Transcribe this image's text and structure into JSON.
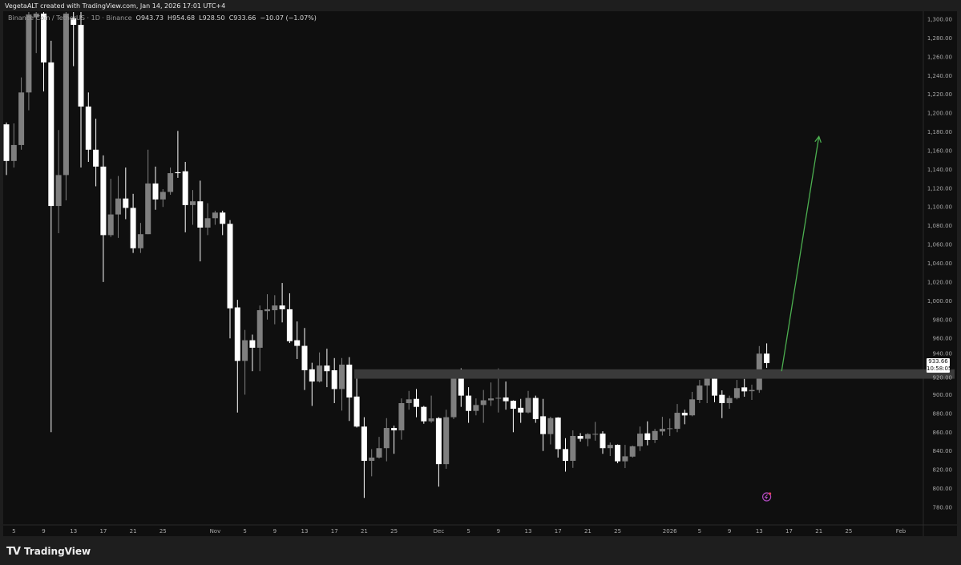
{
  "credit": "VegetaALT created with TradingView.com, Jan 14, 2026 17:01 UTC+4",
  "legend": {
    "symbol": "Binance Coin / TetherUS · 1D · Binance",
    "o": "O943.73",
    "h": "H954.68",
    "l": "L928.50",
    "c": "C933.66",
    "change": "−10.07 (−1.07%)"
  },
  "footer": {
    "logo": "TV",
    "brand": "TradingView"
  },
  "price_tag": {
    "price": "933.66",
    "countdown": "10:58:05"
  },
  "colors": {
    "background": "#0f0f0f",
    "up": "#7f7f7f",
    "down": "#ffffff",
    "zone": "#3a3a3a",
    "arrow": "#4caf50",
    "event_icon": "#b04ac0"
  },
  "chart_data": {
    "type": "candlestick",
    "title": "",
    "xlabel": "",
    "ylabel": "",
    "ylim": [
      780,
      1300
    ],
    "grid": false,
    "start_date": "2025-10-04",
    "y_ticks": [
      "1,300.00",
      "1,280.00",
      "1,260.00",
      "1,240.00",
      "1,220.00",
      "1,200.00",
      "1,180.00",
      "1,160.00",
      "1,140.00",
      "1,120.00",
      "1,100.00",
      "1,080.00",
      "1,060.00",
      "1,040.00",
      "1,020.00",
      "1,000.00",
      "980.00",
      "960.00",
      "940.00",
      "920.00",
      "900.00",
      "880.00",
      "860.00",
      "840.00",
      "820.00",
      "800.00",
      "780.00"
    ],
    "x_ticks": [
      {
        "text": "5",
        "date": "2025-10-05"
      },
      {
        "text": "9",
        "date": "2025-10-09"
      },
      {
        "text": "13",
        "date": "2025-10-13"
      },
      {
        "text": "17",
        "date": "2025-10-17"
      },
      {
        "text": "21",
        "date": "2025-10-21"
      },
      {
        "text": "25",
        "date": "2025-10-25"
      },
      {
        "text": "Nov",
        "date": "2025-11-01"
      },
      {
        "text": "5",
        "date": "2025-11-05"
      },
      {
        "text": "9",
        "date": "2025-11-09"
      },
      {
        "text": "13",
        "date": "2025-11-13"
      },
      {
        "text": "17",
        "date": "2025-11-17"
      },
      {
        "text": "21",
        "date": "2025-11-21"
      },
      {
        "text": "25",
        "date": "2025-11-25"
      },
      {
        "text": "Dec",
        "date": "2025-12-01"
      },
      {
        "text": "5",
        "date": "2025-12-05"
      },
      {
        "text": "9",
        "date": "2025-12-09"
      },
      {
        "text": "13",
        "date": "2025-12-13"
      },
      {
        "text": "17",
        "date": "2025-12-17"
      },
      {
        "text": "21",
        "date": "2025-12-21"
      },
      {
        "text": "25",
        "date": "2025-12-25"
      },
      {
        "text": "2026",
        "date": "2026-01-01"
      },
      {
        "text": "5",
        "date": "2026-01-05"
      },
      {
        "text": "9",
        "date": "2026-01-09"
      },
      {
        "text": "13",
        "date": "2026-01-13"
      },
      {
        "text": "17",
        "date": "2026-01-17"
      },
      {
        "text": "21",
        "date": "2026-01-21"
      },
      {
        "text": "25",
        "date": "2026-01-25"
      },
      {
        "text": "Feb",
        "date": "2026-02-01"
      }
    ],
    "ohlc_fields": [
      "open",
      "high",
      "low",
      "close"
    ],
    "candles": [
      [
        1188,
        1190,
        1134,
        1149
      ],
      [
        1149,
        1189,
        1142,
        1166
      ],
      [
        1166,
        1238,
        1161,
        1222
      ],
      [
        1222,
        1320,
        1203,
        1305
      ],
      [
        1302,
        1320,
        1264,
        1306
      ],
      [
        1306,
        1320,
        1223,
        1254
      ],
      [
        1254,
        1277,
        860,
        1101
      ],
      [
        1101,
        1182,
        1072,
        1134
      ],
      [
        1134,
        1320,
        1107,
        1306
      ],
      [
        1301,
        1320,
        1250,
        1294
      ],
      [
        1294,
        1320,
        1142,
        1207
      ],
      [
        1207,
        1222,
        1148,
        1161
      ],
      [
        1161,
        1194,
        1122,
        1143
      ],
      [
        1143,
        1155,
        1020,
        1070
      ],
      [
        1070,
        1130,
        1068,
        1092
      ],
      [
        1092,
        1133,
        1067,
        1109
      ],
      [
        1109,
        1142,
        1087,
        1099
      ],
      [
        1099,
        1114,
        1051,
        1056
      ],
      [
        1056,
        1083,
        1051,
        1071
      ],
      [
        1071,
        1161,
        1071,
        1125
      ],
      [
        1125,
        1143,
        1097,
        1108
      ],
      [
        1108,
        1119,
        1100,
        1116
      ],
      [
        1116,
        1142,
        1113,
        1136
      ],
      [
        1137,
        1181,
        1131,
        1136
      ],
      [
        1138,
        1148,
        1073,
        1102
      ],
      [
        1102,
        1118,
        1081,
        1106
      ],
      [
        1106,
        1128,
        1042,
        1078
      ],
      [
        1078,
        1104,
        1070,
        1088
      ],
      [
        1088,
        1096,
        1081,
        1094
      ],
      [
        1094,
        1096,
        1070,
        1082
      ],
      [
        1082,
        1086,
        960,
        992
      ],
      [
        993,
        1001,
        881,
        936
      ],
      [
        936,
        969,
        900,
        958
      ],
      [
        958,
        964,
        925,
        950
      ],
      [
        950,
        995,
        925,
        990
      ],
      [
        989,
        1007,
        980,
        991
      ],
      [
        990,
        1006,
        975,
        995
      ],
      [
        995,
        1019,
        977,
        991
      ],
      [
        991,
        1008,
        955,
        957
      ],
      [
        958,
        978,
        938,
        952
      ],
      [
        952,
        971,
        905,
        926
      ],
      [
        927,
        934,
        888,
        914
      ],
      [
        914,
        945,
        913,
        931
      ],
      [
        931,
        949,
        908,
        925
      ],
      [
        926,
        939,
        891,
        906
      ],
      [
        906,
        939,
        883,
        932
      ],
      [
        932,
        940,
        872,
        897
      ],
      [
        898,
        917,
        865,
        866
      ],
      [
        866,
        876,
        790,
        829.5
      ],
      [
        829.5,
        842,
        813,
        833
      ],
      [
        833,
        855,
        832,
        843
      ],
      [
        843,
        875,
        829,
        864.5
      ],
      [
        864.5,
        867,
        837,
        862
      ],
      [
        862,
        896,
        852,
        891
      ],
      [
        891,
        904,
        884,
        895
      ],
      [
        895.5,
        906,
        876,
        887
      ],
      [
        887,
        888,
        869,
        871.6
      ],
      [
        871.6,
        899,
        870,
        874.7
      ],
      [
        875,
        876,
        802,
        826
      ],
      [
        826,
        884,
        821,
        876
      ],
      [
        876,
        921,
        874,
        920
      ],
      [
        920,
        928,
        887,
        899
      ],
      [
        899,
        908,
        870,
        882.7
      ],
      [
        882.7,
        896,
        878,
        889
      ],
      [
        889,
        905,
        870,
        894
      ],
      [
        894,
        913,
        888,
        896
      ],
      [
        896.3,
        928,
        881,
        896.6
      ],
      [
        897,
        914,
        884,
        893
      ],
      [
        893.5,
        894,
        860,
        885
      ],
      [
        886,
        895.5,
        870,
        881
      ],
      [
        881,
        904,
        880,
        896.5
      ],
      [
        896.5,
        899,
        870,
        874
      ],
      [
        877,
        895.5,
        840,
        858
      ],
      [
        858,
        876.5,
        847,
        875
      ],
      [
        875.6,
        876,
        833,
        842
      ],
      [
        842,
        853.6,
        818,
        829.5
      ],
      [
        829.5,
        862,
        822,
        856
      ],
      [
        856,
        859,
        850,
        853
      ],
      [
        853,
        859,
        845,
        858
      ],
      [
        857.8,
        871,
        851,
        858.2
      ],
      [
        858.5,
        861,
        837,
        843
      ],
      [
        843,
        849,
        834.6,
        846.5
      ],
      [
        846.5,
        847,
        827,
        829
      ],
      [
        829,
        846.5,
        821.8,
        834.3
      ],
      [
        834,
        845.7,
        833,
        845
      ],
      [
        845,
        866,
        840,
        858.5
      ],
      [
        858.8,
        871.6,
        846,
        851.7
      ],
      [
        851.7,
        863.6,
        848.5,
        861.3
      ],
      [
        860.8,
        876.4,
        856.5,
        863.6
      ],
      [
        863.8,
        874.5,
        856,
        864.2
      ],
      [
        863.6,
        890,
        860,
        880.7
      ],
      [
        880.7,
        884,
        868.5,
        877.9
      ],
      [
        878,
        903,
        877,
        895
      ],
      [
        894.4,
        915.7,
        891,
        909.7
      ],
      [
        909.7,
        924,
        891,
        917
      ],
      [
        917,
        919,
        892,
        899
      ],
      [
        899.8,
        904.6,
        875,
        891
      ],
      [
        891,
        899,
        885,
        896.4
      ],
      [
        896.4,
        915.7,
        895,
        907
      ],
      [
        907.8,
        916.8,
        897.8,
        903.5
      ],
      [
        903.7,
        910.6,
        894.4,
        905
      ],
      [
        905,
        951.8,
        902,
        943.7
      ],
      [
        943.73,
        954.68,
        928.5,
        933.66
      ]
    ],
    "annotations": {
      "zone": {
        "from_date": "2025-11-20",
        "price_low": 917,
        "price_high": 927
      },
      "arrow": {
        "from": {
          "date": "2026-01-16",
          "price": 925
        },
        "to": {
          "date": "2026-01-21",
          "price": 1175
        }
      },
      "event_marker": {
        "date": "2026-01-14",
        "icon": "lightning-icon"
      }
    }
  }
}
